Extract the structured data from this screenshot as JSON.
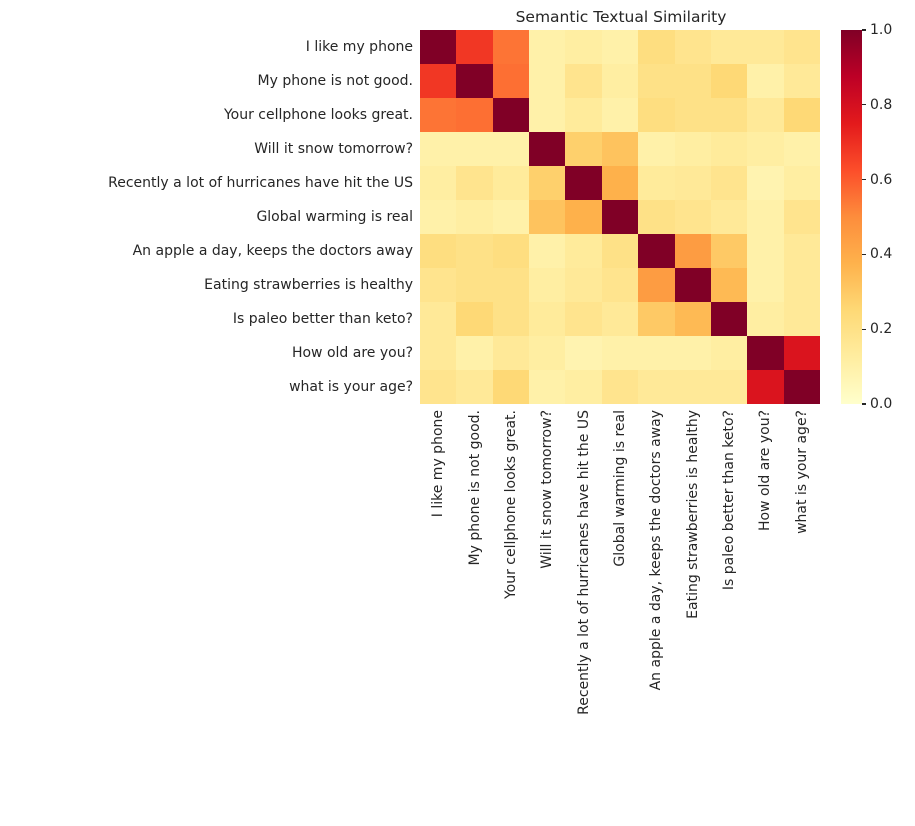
{
  "chart_data": {
    "type": "heatmap",
    "title": "Semantic Textual Similarity",
    "labels": [
      "I like my phone",
      "My phone is not good.",
      "Your cellphone looks great.",
      "Will it snow tomorrow?",
      "Recently a lot of hurricanes have hit the US",
      "Global warming is real",
      "An apple a day, keeps the doctors away",
      "Eating strawberries is healthy",
      "Is paleo better than keto?",
      "How old are you?",
      "what is your age?"
    ],
    "matrix": [
      [
        1.0,
        0.68,
        0.55,
        0.1,
        0.12,
        0.1,
        0.22,
        0.18,
        0.15,
        0.15,
        0.18
      ],
      [
        0.68,
        1.0,
        0.56,
        0.1,
        0.18,
        0.12,
        0.2,
        0.2,
        0.25,
        0.1,
        0.15
      ],
      [
        0.55,
        0.56,
        1.0,
        0.1,
        0.14,
        0.1,
        0.22,
        0.2,
        0.2,
        0.15,
        0.25
      ],
      [
        0.1,
        0.1,
        0.1,
        1.0,
        0.28,
        0.32,
        0.1,
        0.12,
        0.14,
        0.12,
        0.1
      ],
      [
        0.12,
        0.18,
        0.14,
        0.28,
        1.0,
        0.38,
        0.14,
        0.15,
        0.18,
        0.08,
        0.12
      ],
      [
        0.1,
        0.12,
        0.1,
        0.32,
        0.38,
        1.0,
        0.2,
        0.18,
        0.15,
        0.1,
        0.18
      ],
      [
        0.22,
        0.2,
        0.22,
        0.1,
        0.14,
        0.2,
        1.0,
        0.45,
        0.3,
        0.1,
        0.15
      ],
      [
        0.18,
        0.2,
        0.2,
        0.12,
        0.15,
        0.18,
        0.45,
        1.0,
        0.35,
        0.1,
        0.15
      ],
      [
        0.15,
        0.25,
        0.2,
        0.14,
        0.18,
        0.15,
        0.3,
        0.35,
        1.0,
        0.12,
        0.15
      ],
      [
        0.15,
        0.1,
        0.15,
        0.12,
        0.08,
        0.1,
        0.1,
        0.1,
        0.12,
        1.0,
        0.78
      ],
      [
        0.18,
        0.15,
        0.25,
        0.1,
        0.12,
        0.18,
        0.15,
        0.15,
        0.15,
        0.78,
        1.0
      ]
    ],
    "value_range": [
      0.0,
      1.0
    ],
    "colormap": {
      "name": "YlOrRd",
      "stops": [
        "#ffffcc",
        "#ffeda0",
        "#fed976",
        "#feb24c",
        "#fd8d3c",
        "#fc4e2a",
        "#e31a1c",
        "#bd0026",
        "#800026"
      ]
    },
    "colorbar": {
      "position": "right",
      "tick_labels": [
        "0.0",
        "0.2",
        "0.4",
        "0.6",
        "0.8",
        "1.0"
      ],
      "tick_values": [
        0.0,
        0.2,
        0.4,
        0.6,
        0.8,
        1.0
      ]
    },
    "grid": false,
    "legend_position": "right-colorbar"
  },
  "style": {
    "text_color": "#262626",
    "background": "#ffffff"
  }
}
